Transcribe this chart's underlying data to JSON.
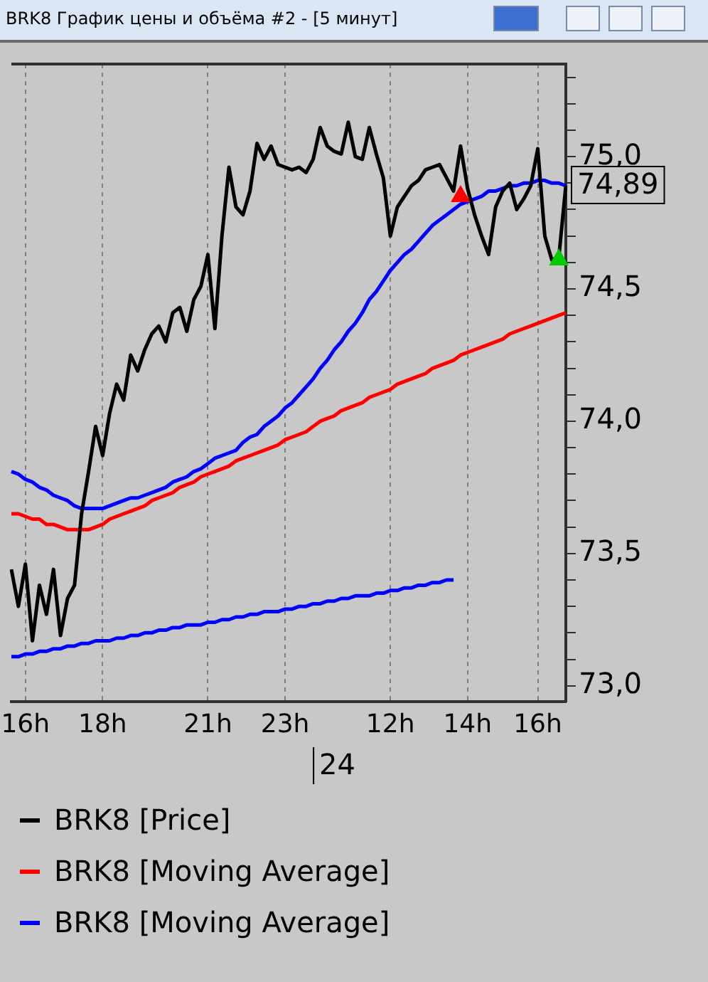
{
  "chart_data": {
    "type": "line",
    "title": "BRK8 График цены и объёма #2 - [5 минут]",
    "categories": [
      null,
      null,
      "16h",
      null,
      null,
      null,
      null,
      null,
      null,
      null,
      null,
      null,
      null,
      "18h",
      null,
      null,
      null,
      null,
      null,
      null,
      null,
      null,
      null,
      null,
      null,
      null,
      null,
      null,
      "21h",
      null,
      null,
      null,
      null,
      null,
      null,
      null,
      null,
      null,
      null,
      "23h",
      null,
      null,
      null,
      null,
      null,
      null,
      null,
      null,
      null,
      null,
      null,
      null,
      null,
      null,
      "12h",
      null,
      null,
      null,
      null,
      null,
      null,
      null,
      null,
      null,
      null,
      "14h",
      null,
      null,
      null,
      null,
      null,
      null,
      null,
      null,
      null,
      "16h",
      null,
      null,
      null,
      null
    ],
    "series": [
      {
        "name": "BRK8 [Price]",
        "color": "#000000",
        "values": [
          73.44,
          73.3,
          73.46,
          73.17,
          73.38,
          73.27,
          73.44,
          73.19,
          73.33,
          73.38,
          73.65,
          73.81,
          73.98,
          73.87,
          74.03,
          74.14,
          74.08,
          74.25,
          74.19,
          74.27,
          74.33,
          74.36,
          74.3,
          74.41,
          74.43,
          74.34,
          74.46,
          74.51,
          74.63,
          74.35,
          74.7,
          74.96,
          74.81,
          74.78,
          74.87,
          75.05,
          74.99,
          75.04,
          74.97,
          74.96,
          74.95,
          74.96,
          74.94,
          74.99,
          75.11,
          75.04,
          75.02,
          75.01,
          75.13,
          75.0,
          74.99,
          75.11,
          75.01,
          74.92,
          74.7,
          74.81,
          74.85,
          74.89,
          74.91,
          74.95,
          74.96,
          74.97,
          74.92,
          74.87,
          75.04,
          74.88,
          74.78,
          74.7,
          74.63,
          74.81,
          74.87,
          74.9,
          74.8,
          74.84,
          74.89,
          75.03,
          74.7,
          74.61,
          74.62,
          74.89
        ]
      },
      {
        "name": "BRK8 [Moving Average]",
        "color": "#ff0000",
        "values": [
          73.65,
          73.65,
          73.64,
          73.63,
          73.63,
          73.61,
          73.61,
          73.6,
          73.59,
          73.59,
          73.59,
          73.59,
          73.6,
          73.61,
          73.63,
          73.64,
          73.65,
          73.66,
          73.67,
          73.68,
          73.7,
          73.71,
          73.72,
          73.73,
          73.75,
          73.76,
          73.77,
          73.79,
          73.8,
          73.81,
          73.82,
          73.83,
          73.85,
          73.86,
          73.87,
          73.88,
          73.89,
          73.9,
          73.91,
          73.93,
          73.94,
          73.95,
          73.96,
          73.98,
          74.0,
          74.01,
          74.02,
          74.04,
          74.05,
          74.06,
          74.07,
          74.09,
          74.1,
          74.11,
          74.12,
          74.14,
          74.15,
          74.16,
          74.17,
          74.18,
          74.2,
          74.21,
          74.22,
          74.23,
          74.25,
          74.26,
          74.27,
          74.28,
          74.29,
          74.3,
          74.31,
          74.33,
          74.34,
          74.35,
          74.36,
          74.37,
          74.38,
          74.39,
          74.4,
          74.41
        ]
      },
      {
        "name": "BRK8 [Moving Average]",
        "color": "#0000ff",
        "values": [
          73.81,
          73.8,
          73.78,
          73.77,
          73.75,
          73.74,
          73.72,
          73.71,
          73.7,
          73.68,
          73.67,
          73.67,
          73.67,
          73.67,
          73.68,
          73.69,
          73.7,
          73.71,
          73.71,
          73.72,
          73.73,
          73.74,
          73.75,
          73.77,
          73.78,
          73.79,
          73.81,
          73.82,
          73.84,
          73.86,
          73.87,
          73.88,
          73.89,
          73.92,
          73.94,
          73.95,
          73.98,
          74.0,
          74.02,
          74.05,
          74.07,
          74.1,
          74.13,
          74.16,
          74.2,
          74.23,
          74.27,
          74.3,
          74.34,
          74.37,
          74.41,
          74.46,
          74.49,
          74.53,
          74.57,
          74.6,
          74.63,
          74.65,
          74.68,
          74.71,
          74.74,
          74.76,
          74.78,
          74.8,
          74.82,
          74.83,
          74.84,
          74.85,
          74.87,
          74.87,
          74.88,
          74.89,
          74.89,
          74.9,
          74.9,
          74.91,
          74.91,
          74.9,
          74.9,
          74.89
        ]
      },
      {
        "color": "#0000ff",
        "values": [
          73.11,
          73.11,
          73.12,
          73.12,
          73.13,
          73.13,
          73.14,
          73.14,
          73.15,
          73.15,
          73.16,
          73.16,
          73.17,
          73.17,
          73.17,
          73.18,
          73.18,
          73.19,
          73.19,
          73.2,
          73.2,
          73.21,
          73.21,
          73.22,
          73.22,
          73.23,
          73.23,
          73.23,
          73.24,
          73.24,
          73.25,
          73.25,
          73.26,
          73.26,
          73.27,
          73.27,
          73.28,
          73.28,
          73.28,
          73.29,
          73.29,
          73.3,
          73.3,
          73.31,
          73.31,
          73.32,
          73.32,
          73.33,
          73.33,
          73.34,
          73.34,
          73.34,
          73.35,
          73.35,
          73.36,
          73.36,
          73.37,
          73.37,
          73.38,
          73.38,
          73.39,
          73.39,
          73.4,
          73.4,
          null,
          null,
          null,
          null,
          null,
          null,
          null,
          null,
          null,
          null,
          null,
          null,
          null,
          null,
          null,
          null
        ]
      },
      {
        "type": "scatter",
        "color": "#ff0000",
        "marker": "triangle",
        "values": [
          null,
          null,
          null,
          null,
          null,
          null,
          null,
          null,
          null,
          null,
          null,
          null,
          null,
          null,
          null,
          null,
          null,
          null,
          null,
          null,
          null,
          null,
          null,
          null,
          null,
          null,
          null,
          null,
          null,
          null,
          null,
          null,
          null,
          null,
          null,
          null,
          null,
          null,
          null,
          null,
          null,
          null,
          null,
          null,
          null,
          null,
          null,
          null,
          null,
          null,
          null,
          null,
          null,
          null,
          null,
          null,
          null,
          null,
          null,
          null,
          null,
          null,
          null,
          null,
          74.85,
          null,
          null,
          null,
          null,
          null,
          null,
          null,
          null,
          null,
          null,
          null,
          null,
          null,
          null,
          null
        ]
      },
      {
        "type": "scatter",
        "color": "#00cc00",
        "marker": "triangle",
        "values": [
          null,
          null,
          null,
          null,
          null,
          null,
          null,
          null,
          null,
          null,
          null,
          null,
          null,
          null,
          null,
          null,
          null,
          null,
          null,
          null,
          null,
          null,
          null,
          null,
          null,
          null,
          null,
          null,
          null,
          null,
          null,
          null,
          null,
          null,
          null,
          null,
          null,
          null,
          null,
          null,
          null,
          null,
          null,
          null,
          null,
          null,
          null,
          null,
          null,
          null,
          null,
          null,
          null,
          null,
          null,
          null,
          null,
          null,
          null,
          null,
          null,
          null,
          null,
          null,
          null,
          null,
          null,
          null,
          null,
          null,
          null,
          null,
          null,
          null,
          null,
          null,
          null,
          null,
          74.61,
          null
        ]
      }
    ],
    "ylim": [
      72.94,
      75.35
    ],
    "yticks": [
      {
        "value": 73,
        "label": "73,0"
      },
      {
        "value": 73.1,
        "label": null
      },
      {
        "value": 73.2,
        "label": null
      },
      {
        "value": 73.3,
        "label": null
      },
      {
        "value": 73.4,
        "label": null
      },
      {
        "value": 73.5,
        "label": "73,5"
      },
      {
        "value": 73.6,
        "label": null
      },
      {
        "value": 73.7,
        "label": null
      },
      {
        "value": 73.8,
        "label": null
      },
      {
        "value": 73.9,
        "label": null
      },
      {
        "value": 74,
        "label": "74,0"
      },
      {
        "value": 74.1,
        "label": null
      },
      {
        "value": 74.2,
        "label": null
      },
      {
        "value": 74.3,
        "label": null
      },
      {
        "value": 74.4,
        "label": null
      },
      {
        "value": 74.5,
        "label": "74,5"
      },
      {
        "value": 74.6,
        "label": null
      },
      {
        "value": 74.7,
        "label": null
      },
      {
        "value": 74.8,
        "label": null
      },
      {
        "value": 74.9,
        "label": null
      },
      {
        "value": 75,
        "label": "75,0"
      },
      {
        "value": 75.1,
        "label": null
      },
      {
        "value": 75.2,
        "label": null
      },
      {
        "value": 75.3,
        "label": null
      }
    ],
    "grid": "x",
    "legend": "bottom",
    "marker": "none",
    "annotations": [
      "74,89",
      "24"
    ]
  }
}
